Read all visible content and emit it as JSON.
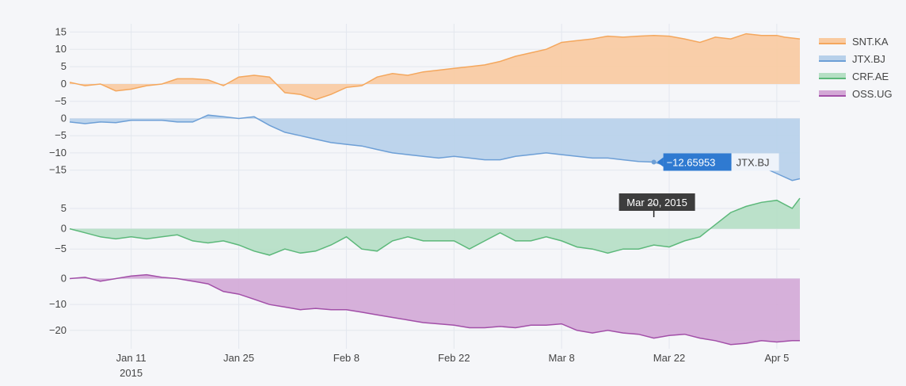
{
  "chart_data": {
    "type": "area",
    "x_start": "2015-01-03",
    "x_end": "2015-04-08",
    "x_ticks": [
      {
        "date": "2015-01-11",
        "label": "Jan 11",
        "sublabel": "2015"
      },
      {
        "date": "2015-01-25",
        "label": "Jan 25",
        "sublabel": ""
      },
      {
        "date": "2015-02-08",
        "label": "Feb 8",
        "sublabel": ""
      },
      {
        "date": "2015-02-22",
        "label": "Feb 22",
        "sublabel": ""
      },
      {
        "date": "2015-03-08",
        "label": "Mar 8",
        "sublabel": ""
      },
      {
        "date": "2015-03-22",
        "label": "Mar 22",
        "sublabel": ""
      },
      {
        "date": "2015-04-05",
        "label": "Apr 5",
        "sublabel": ""
      }
    ],
    "series": [
      {
        "name": "SNT.KA",
        "color": "#f4a75d",
        "fill": "#f9caa0",
        "ylim": [
          -5.5,
          16
        ],
        "yticks": [
          15,
          10,
          5,
          0,
          -5
        ],
        "points": [
          [
            "2015-01-03",
            0.5
          ],
          [
            "2015-01-05",
            -0.5
          ],
          [
            "2015-01-07",
            0
          ],
          [
            "2015-01-09",
            -2
          ],
          [
            "2015-01-11",
            -1.5
          ],
          [
            "2015-01-13",
            -0.5
          ],
          [
            "2015-01-15",
            0
          ],
          [
            "2015-01-17",
            1.5
          ],
          [
            "2015-01-19",
            1.5
          ],
          [
            "2015-01-21",
            1.2
          ],
          [
            "2015-01-23",
            -0.5
          ],
          [
            "2015-01-25",
            2
          ],
          [
            "2015-01-27",
            2.5
          ],
          [
            "2015-01-29",
            2
          ],
          [
            "2015-01-31",
            -2.5
          ],
          [
            "2015-02-02",
            -3
          ],
          [
            "2015-02-04",
            -4.5
          ],
          [
            "2015-02-06",
            -3
          ],
          [
            "2015-02-08",
            -1
          ],
          [
            "2015-02-10",
            -0.5
          ],
          [
            "2015-02-12",
            2
          ],
          [
            "2015-02-14",
            3
          ],
          [
            "2015-02-16",
            2.5
          ],
          [
            "2015-02-18",
            3.5
          ],
          [
            "2015-02-20",
            4
          ],
          [
            "2015-02-22",
            4.5
          ],
          [
            "2015-02-24",
            5
          ],
          [
            "2015-02-26",
            5.5
          ],
          [
            "2015-02-28",
            6.5
          ],
          [
            "2015-03-02",
            8
          ],
          [
            "2015-03-04",
            9
          ],
          [
            "2015-03-06",
            10
          ],
          [
            "2015-03-08",
            12
          ],
          [
            "2015-03-10",
            12.5
          ],
          [
            "2015-03-12",
            13
          ],
          [
            "2015-03-14",
            13.8
          ],
          [
            "2015-03-16",
            13.5
          ],
          [
            "2015-03-18",
            13.8
          ],
          [
            "2015-03-20",
            14
          ],
          [
            "2015-03-22",
            13.8
          ],
          [
            "2015-03-24",
            13
          ],
          [
            "2015-03-26",
            12
          ],
          [
            "2015-03-28",
            13.5
          ],
          [
            "2015-03-30",
            13
          ],
          [
            "2015-04-01",
            14.5
          ],
          [
            "2015-04-03",
            14
          ],
          [
            "2015-04-05",
            14
          ],
          [
            "2015-04-06",
            13.5
          ],
          [
            "2015-04-08",
            13
          ]
        ]
      },
      {
        "name": "JTX.BJ",
        "color": "#6d9fd6",
        "fill": "#b7d0ea",
        "ylim": [
          -19,
          1.5
        ],
        "yticks": [
          0,
          -5,
          -10,
          -15
        ],
        "points": [
          [
            "2015-01-03",
            -1
          ],
          [
            "2015-01-05",
            -1.5
          ],
          [
            "2015-01-07",
            -1
          ],
          [
            "2015-01-09",
            -1.2
          ],
          [
            "2015-01-11",
            -0.5
          ],
          [
            "2015-01-13",
            -0.5
          ],
          [
            "2015-01-15",
            -0.5
          ],
          [
            "2015-01-17",
            -1
          ],
          [
            "2015-01-19",
            -1
          ],
          [
            "2015-01-21",
            1
          ],
          [
            "2015-01-23",
            0.5
          ],
          [
            "2015-01-25",
            0
          ],
          [
            "2015-01-27",
            0.5
          ],
          [
            "2015-01-29",
            -2
          ],
          [
            "2015-01-31",
            -4
          ],
          [
            "2015-02-02",
            -5
          ],
          [
            "2015-02-04",
            -6
          ],
          [
            "2015-02-06",
            -7
          ],
          [
            "2015-02-08",
            -7.5
          ],
          [
            "2015-02-10",
            -8
          ],
          [
            "2015-02-12",
            -9
          ],
          [
            "2015-02-14",
            -10
          ],
          [
            "2015-02-16",
            -10.5
          ],
          [
            "2015-02-18",
            -11
          ],
          [
            "2015-02-20",
            -11.5
          ],
          [
            "2015-02-22",
            -11
          ],
          [
            "2015-02-24",
            -11.5
          ],
          [
            "2015-02-26",
            -12
          ],
          [
            "2015-02-28",
            -12
          ],
          [
            "2015-03-02",
            -11
          ],
          [
            "2015-03-04",
            -10.5
          ],
          [
            "2015-03-06",
            -10
          ],
          [
            "2015-03-08",
            -10.5
          ],
          [
            "2015-03-10",
            -11
          ],
          [
            "2015-03-12",
            -11.5
          ],
          [
            "2015-03-14",
            -11.5
          ],
          [
            "2015-03-16",
            -12
          ],
          [
            "2015-03-18",
            -12.5
          ],
          [
            "2015-03-20",
            -12.66
          ],
          [
            "2015-03-22",
            -14
          ],
          [
            "2015-03-24",
            -15
          ],
          [
            "2015-03-26",
            -14
          ],
          [
            "2015-03-28",
            -13.5
          ],
          [
            "2015-03-30",
            -13
          ],
          [
            "2015-04-01",
            -12.5
          ],
          [
            "2015-04-03",
            -14
          ],
          [
            "2015-04-05",
            -16
          ],
          [
            "2015-04-07",
            -18
          ],
          [
            "2015-04-08",
            -17.5
          ]
        ]
      },
      {
        "name": "CRF.AE",
        "color": "#5cb87a",
        "fill": "#b5dfc4",
        "ylim": [
          -7.5,
          8.5
        ],
        "yticks": [
          5,
          0,
          -5
        ],
        "points": [
          [
            "2015-01-03",
            0
          ],
          [
            "2015-01-05",
            -1
          ],
          [
            "2015-01-07",
            -2
          ],
          [
            "2015-01-09",
            -2.5
          ],
          [
            "2015-01-11",
            -2
          ],
          [
            "2015-01-13",
            -2.5
          ],
          [
            "2015-01-15",
            -2
          ],
          [
            "2015-01-17",
            -1.5
          ],
          [
            "2015-01-19",
            -3
          ],
          [
            "2015-01-21",
            -3.5
          ],
          [
            "2015-01-23",
            -3
          ],
          [
            "2015-01-25",
            -4
          ],
          [
            "2015-01-27",
            -5.5
          ],
          [
            "2015-01-29",
            -6.5
          ],
          [
            "2015-01-31",
            -5
          ],
          [
            "2015-02-02",
            -6
          ],
          [
            "2015-02-04",
            -5.5
          ],
          [
            "2015-02-06",
            -4
          ],
          [
            "2015-02-08",
            -2
          ],
          [
            "2015-02-10",
            -5
          ],
          [
            "2015-02-12",
            -5.5
          ],
          [
            "2015-02-14",
            -3
          ],
          [
            "2015-02-16",
            -2
          ],
          [
            "2015-02-18",
            -3
          ],
          [
            "2015-02-20",
            -3
          ],
          [
            "2015-02-22",
            -3
          ],
          [
            "2015-02-24",
            -5
          ],
          [
            "2015-02-26",
            -3
          ],
          [
            "2015-02-28",
            -1
          ],
          [
            "2015-03-02",
            -3
          ],
          [
            "2015-03-04",
            -3
          ],
          [
            "2015-03-06",
            -2
          ],
          [
            "2015-03-08",
            -3
          ],
          [
            "2015-03-10",
            -4.5
          ],
          [
            "2015-03-12",
            -5
          ],
          [
            "2015-03-14",
            -6
          ],
          [
            "2015-03-16",
            -5
          ],
          [
            "2015-03-18",
            -5
          ],
          [
            "2015-03-20",
            -4
          ],
          [
            "2015-03-22",
            -4.5
          ],
          [
            "2015-03-24",
            -3
          ],
          [
            "2015-03-26",
            -2
          ],
          [
            "2015-03-28",
            1
          ],
          [
            "2015-03-30",
            4
          ],
          [
            "2015-04-01",
            5.5
          ],
          [
            "2015-04-03",
            6.5
          ],
          [
            "2015-04-05",
            7
          ],
          [
            "2015-04-07",
            5
          ],
          [
            "2015-04-08",
            7.5
          ]
        ]
      },
      {
        "name": "OSS.UG",
        "color": "#a24fa8",
        "fill": "#d3a8d6",
        "ylim": [
          -26.5,
          2
        ],
        "yticks": [
          0,
          -10,
          -20
        ],
        "points": [
          [
            "2015-01-03",
            0
          ],
          [
            "2015-01-05",
            0.5
          ],
          [
            "2015-01-07",
            -1
          ],
          [
            "2015-01-09",
            0
          ],
          [
            "2015-01-11",
            1
          ],
          [
            "2015-01-13",
            1.5
          ],
          [
            "2015-01-15",
            0.5
          ],
          [
            "2015-01-17",
            0
          ],
          [
            "2015-01-19",
            -1
          ],
          [
            "2015-01-21",
            -2
          ],
          [
            "2015-01-23",
            -5
          ],
          [
            "2015-01-25",
            -6
          ],
          [
            "2015-01-27",
            -8
          ],
          [
            "2015-01-29",
            -10
          ],
          [
            "2015-01-31",
            -11
          ],
          [
            "2015-02-02",
            -12
          ],
          [
            "2015-02-04",
            -11.5
          ],
          [
            "2015-02-06",
            -12
          ],
          [
            "2015-02-08",
            -12
          ],
          [
            "2015-02-10",
            -13
          ],
          [
            "2015-02-12",
            -14
          ],
          [
            "2015-02-14",
            -15
          ],
          [
            "2015-02-16",
            -16
          ],
          [
            "2015-02-18",
            -17
          ],
          [
            "2015-02-20",
            -17.5
          ],
          [
            "2015-02-22",
            -18
          ],
          [
            "2015-02-24",
            -19
          ],
          [
            "2015-02-26",
            -19
          ],
          [
            "2015-02-28",
            -18.5
          ],
          [
            "2015-03-02",
            -19
          ],
          [
            "2015-03-04",
            -18
          ],
          [
            "2015-03-06",
            -18
          ],
          [
            "2015-03-08",
            -17.5
          ],
          [
            "2015-03-10",
            -20
          ],
          [
            "2015-03-12",
            -21
          ],
          [
            "2015-03-14",
            -20
          ],
          [
            "2015-03-16",
            -21
          ],
          [
            "2015-03-18",
            -21.5
          ],
          [
            "2015-03-20",
            -23
          ],
          [
            "2015-03-22",
            -22
          ],
          [
            "2015-03-24",
            -21.5
          ],
          [
            "2015-03-26",
            -23
          ],
          [
            "2015-03-28",
            -24
          ],
          [
            "2015-03-30",
            -25.5
          ],
          [
            "2015-04-01",
            -25
          ],
          [
            "2015-04-03",
            -24
          ],
          [
            "2015-04-05",
            -24.5
          ],
          [
            "2015-04-07",
            -24
          ],
          [
            "2015-04-08",
            -24
          ]
        ]
      }
    ],
    "hover": {
      "series": "JTX.BJ",
      "date": "2015-03-20",
      "value_label": "−12.65953",
      "series_label": "JTX.BJ",
      "date_label": "Mar 20, 2015",
      "date_label_display": "Mar 2̶0, 2015"
    }
  }
}
